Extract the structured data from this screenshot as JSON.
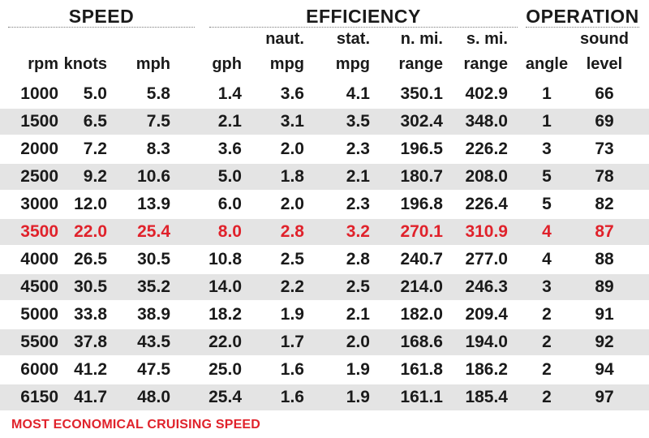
{
  "groups": {
    "speed": "SPEED",
    "efficiency": "EFFICIENCY",
    "operation": "OPERATION"
  },
  "columns": {
    "rpm": [
      "",
      "rpm"
    ],
    "knots": [
      "",
      "knots"
    ],
    "mph": [
      "",
      "mph"
    ],
    "gph": [
      "",
      "gph"
    ],
    "naut_mpg": [
      "naut.",
      "mpg"
    ],
    "stat_mpg": [
      "stat.",
      "mpg"
    ],
    "nmi_range": [
      "n. mi.",
      "range"
    ],
    "smi_range": [
      "s. mi.",
      "range"
    ],
    "angle": [
      "",
      "angle"
    ],
    "sound": [
      "sound",
      "level"
    ]
  },
  "rows": [
    {
      "rpm": "1000",
      "knots": "5.0",
      "mph": "5.8",
      "gph": "1.4",
      "naut_mpg": "3.6",
      "stat_mpg": "4.1",
      "nmi_range": "350.1",
      "smi_range": "402.9",
      "angle": "1",
      "sound": "66",
      "highlight": false
    },
    {
      "rpm": "1500",
      "knots": "6.5",
      "mph": "7.5",
      "gph": "2.1",
      "naut_mpg": "3.1",
      "stat_mpg": "3.5",
      "nmi_range": "302.4",
      "smi_range": "348.0",
      "angle": "1",
      "sound": "69",
      "highlight": false
    },
    {
      "rpm": "2000",
      "knots": "7.2",
      "mph": "8.3",
      "gph": "3.6",
      "naut_mpg": "2.0",
      "stat_mpg": "2.3",
      "nmi_range": "196.5",
      "smi_range": "226.2",
      "angle": "3",
      "sound": "73",
      "highlight": false
    },
    {
      "rpm": "2500",
      "knots": "9.2",
      "mph": "10.6",
      "gph": "5.0",
      "naut_mpg": "1.8",
      "stat_mpg": "2.1",
      "nmi_range": "180.7",
      "smi_range": "208.0",
      "angle": "5",
      "sound": "78",
      "highlight": false
    },
    {
      "rpm": "3000",
      "knots": "12.0",
      "mph": "13.9",
      "gph": "6.0",
      "naut_mpg": "2.0",
      "stat_mpg": "2.3",
      "nmi_range": "196.8",
      "smi_range": "226.4",
      "angle": "5",
      "sound": "82",
      "highlight": false
    },
    {
      "rpm": "3500",
      "knots": "22.0",
      "mph": "25.4",
      "gph": "8.0",
      "naut_mpg": "2.8",
      "stat_mpg": "3.2",
      "nmi_range": "270.1",
      "smi_range": "310.9",
      "angle": "4",
      "sound": "87",
      "highlight": true
    },
    {
      "rpm": "4000",
      "knots": "26.5",
      "mph": "30.5",
      "gph": "10.8",
      "naut_mpg": "2.5",
      "stat_mpg": "2.8",
      "nmi_range": "240.7",
      "smi_range": "277.0",
      "angle": "4",
      "sound": "88",
      "highlight": false
    },
    {
      "rpm": "4500",
      "knots": "30.5",
      "mph": "35.2",
      "gph": "14.0",
      "naut_mpg": "2.2",
      "stat_mpg": "2.5",
      "nmi_range": "214.0",
      "smi_range": "246.3",
      "angle": "3",
      "sound": "89",
      "highlight": false
    },
    {
      "rpm": "5000",
      "knots": "33.8",
      "mph": "38.9",
      "gph": "18.2",
      "naut_mpg": "1.9",
      "stat_mpg": "2.1",
      "nmi_range": "182.0",
      "smi_range": "209.4",
      "angle": "2",
      "sound": "91",
      "highlight": false
    },
    {
      "rpm": "5500",
      "knots": "37.8",
      "mph": "43.5",
      "gph": "22.0",
      "naut_mpg": "1.7",
      "stat_mpg": "2.0",
      "nmi_range": "168.6",
      "smi_range": "194.0",
      "angle": "2",
      "sound": "92",
      "highlight": false
    },
    {
      "rpm": "6000",
      "knots": "41.2",
      "mph": "47.5",
      "gph": "25.0",
      "naut_mpg": "1.6",
      "stat_mpg": "1.9",
      "nmi_range": "161.8",
      "smi_range": "186.2",
      "angle": "2",
      "sound": "94",
      "highlight": false
    },
    {
      "rpm": "6150",
      "knots": "41.7",
      "mph": "48.0",
      "gph": "25.4",
      "naut_mpg": "1.6",
      "stat_mpg": "1.9",
      "nmi_range": "161.1",
      "smi_range": "185.4",
      "angle": "2",
      "sound": "97",
      "highlight": false
    }
  ],
  "footnote": "MOST ECONOMICAL CRUISING SPEED",
  "colors": {
    "highlight": "#e0222b",
    "stripe": "#e4e4e4",
    "text": "#1a1a1a"
  }
}
